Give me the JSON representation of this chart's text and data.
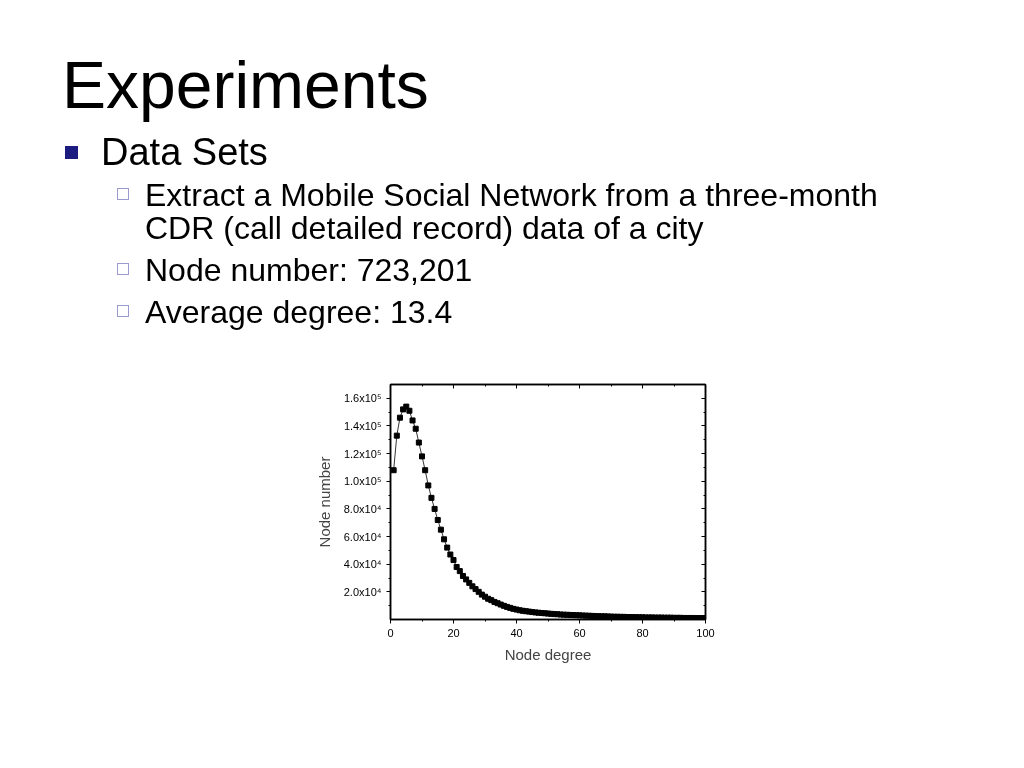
{
  "chart_data": {
    "type": "line",
    "title": "Experiments",
    "annotations": [
      "Data Sets",
      "Extract a Mobile Social Network from a three-month CDR (call detailed record) data of a city",
      "Node number: 723,201",
      "Average degree: 13.4"
    ],
    "xlabel": "Node degree",
    "ylabel": "Node number",
    "x": [
      1,
      2,
      3,
      4,
      5,
      6,
      7,
      8,
      9,
      10,
      11,
      12,
      13,
      14,
      15,
      16,
      17,
      18,
      19,
      20,
      21,
      22,
      23,
      24,
      25,
      26,
      27,
      28,
      29,
      30,
      31,
      32,
      33,
      34,
      35,
      36,
      37,
      38,
      39,
      40,
      41,
      42,
      43,
      44,
      45,
      46,
      47,
      48,
      49,
      50,
      51,
      52,
      53,
      54,
      55,
      56,
      57,
      58,
      59,
      60,
      61,
      62,
      63,
      64,
      65,
      66,
      67,
      68,
      69,
      70,
      71,
      72,
      73,
      74,
      75,
      76,
      77,
      78,
      79,
      80,
      81,
      82,
      83,
      84,
      85,
      86,
      87,
      88,
      89,
      90,
      91,
      92,
      93,
      94,
      95,
      96,
      97,
      98,
      99,
      100
    ],
    "series": [
      {
        "color": "#000000",
        "values": [
          108000,
          133000,
          146000,
          152000,
          154000,
          151000,
          144000,
          138000,
          128000,
          118000,
          108000,
          97000,
          88000,
          80000,
          72000,
          65000,
          58000,
          52000,
          47000,
          43000,
          38000,
          35000,
          31500,
          29000,
          26500,
          24000,
          22000,
          20000,
          18000,
          16500,
          15000,
          14000,
          12700,
          11800,
          10800,
          9900,
          9100,
          8400,
          7700,
          7200,
          6700,
          6300,
          6000,
          5700,
          5400,
          5100,
          4900,
          4700,
          4500,
          4300,
          4100,
          3900,
          3800,
          3600,
          3500,
          3400,
          3300,
          3200,
          3100,
          3000,
          2900,
          2800,
          2700,
          2600,
          2500,
          2400,
          2300,
          2300,
          2200,
          2100,
          2000,
          2000,
          1900,
          1900,
          1800,
          1800,
          1700,
          1700,
          1600,
          1600,
          1500,
          1500,
          1500,
          1400,
          1400,
          1400,
          1300,
          1300,
          1300,
          1200,
          1200,
          1200,
          1100,
          1100,
          1100,
          1100,
          1000,
          1000,
          1000,
          1000
        ]
      }
    ],
    "xlim": [
      0,
      100
    ],
    "ylim": [
      0,
      170000
    ],
    "xticks": [
      0,
      {
        "value": 10,
        "label": null
      },
      20,
      {
        "value": 30,
        "label": null
      },
      40,
      {
        "value": 50,
        "label": null
      },
      60,
      {
        "value": 70,
        "label": null
      },
      80,
      {
        "value": 90,
        "label": null
      },
      100
    ],
    "yticks": [
      {
        "value": 10000,
        "label": null
      },
      {
        "value": 20000,
        "label": "2.0x10⁴"
      },
      {
        "value": 30000,
        "label": null
      },
      {
        "value": 40000,
        "label": "4.0x10⁴"
      },
      {
        "value": 50000,
        "label": null
      },
      {
        "value": 60000,
        "label": "6.0x10⁴"
      },
      {
        "value": 70000,
        "label": null
      },
      {
        "value": 80000,
        "label": "8.0x10⁴"
      },
      {
        "value": 90000,
        "label": null
      },
      {
        "value": 100000,
        "label": "1.0x10⁵"
      },
      {
        "value": 110000,
        "label": null
      },
      {
        "value": 120000,
        "label": "1.2x10⁵"
      },
      {
        "value": 130000,
        "label": null
      },
      {
        "value": 140000,
        "label": "1.4x10⁵"
      },
      {
        "value": 150000,
        "label": null
      },
      {
        "value": 160000,
        "label": "1.6x10⁵"
      }
    ],
    "marker": "square",
    "line_style": "solid",
    "grid": false
  }
}
